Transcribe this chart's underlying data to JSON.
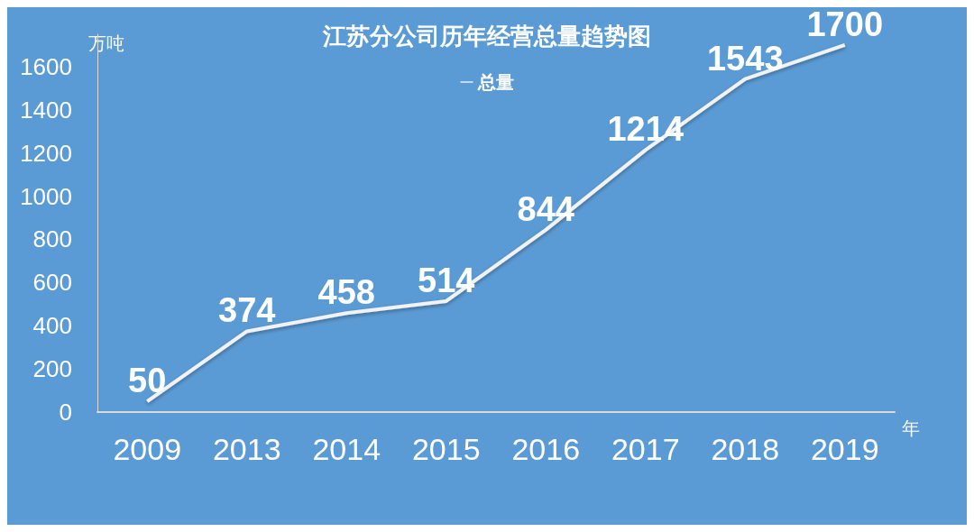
{
  "chart_data": {
    "type": "line",
    "title": "江苏分公司历年经营总量趋势图",
    "ylabel": "万吨",
    "xlabel": "年",
    "categories": [
      "2009",
      "2013",
      "2014",
      "2015",
      "2016",
      "2017",
      "2018",
      "2019"
    ],
    "series": [
      {
        "name": "总量",
        "color": "#f2f2f2",
        "values": [
          50,
          374,
          458,
          514,
          844,
          1214,
          1543,
          1700
        ]
      }
    ],
    "ylim": [
      0,
      1750
    ],
    "yticks": [
      0,
      200,
      400,
      600,
      800,
      1000,
      1200,
      1400,
      1600
    ],
    "grid": false,
    "legend": "top",
    "marker": "none",
    "line_style": "solid",
    "data_labels": true
  }
}
